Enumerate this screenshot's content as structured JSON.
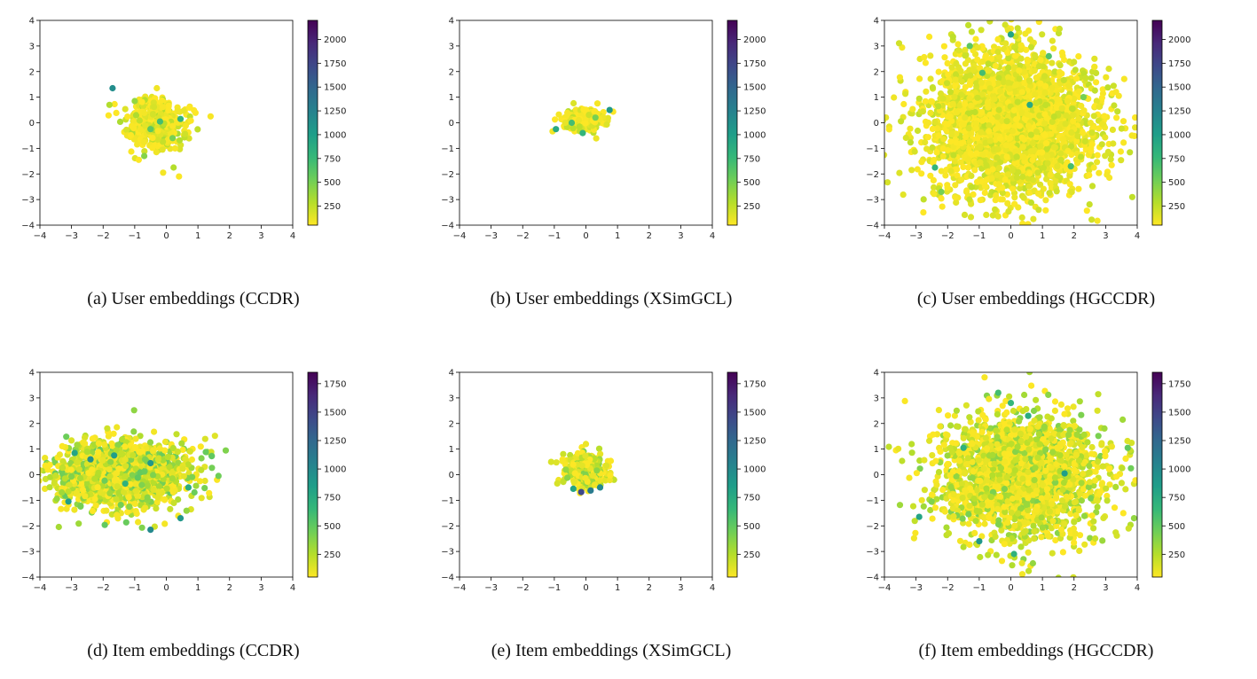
{
  "colormap": {
    "name": "viridis",
    "stops": [
      "#440154",
      "#482878",
      "#3e4989",
      "#31688e",
      "#26828e",
      "#1f9e89",
      "#35b779",
      "#6ece58",
      "#b5de2b",
      "#fde725"
    ],
    "note": "low values yellow, high values purple"
  },
  "chart_data": [
    {
      "type": "scatter",
      "panel": "a",
      "caption": "(a)  User embeddings (CCDR)",
      "xlim": [
        -4,
        4
      ],
      "ylim": [
        -4,
        4
      ],
      "xticks": [
        -4,
        -3,
        -2,
        -1,
        0,
        1,
        2,
        3,
        4
      ],
      "yticks": [
        -4,
        -3,
        -2,
        -1,
        0,
        1,
        2,
        3,
        4
      ],
      "colorbar": {
        "range": [
          50,
          2200
        ],
        "ticks": [
          250,
          500,
          750,
          1000,
          1250,
          1500,
          1750,
          2000
        ]
      },
      "cloud": {
        "cx": -0.35,
        "cy": 0.0,
        "sx": 0.45,
        "sy": 0.5,
        "n": 420,
        "base_values": [
          50,
          330
        ]
      },
      "points": [
        {
          "x": -1.7,
          "y": 1.35,
          "v": 1150
        },
        {
          "x": 0.45,
          "y": 0.15,
          "v": 800
        },
        {
          "x": -0.7,
          "y": -1.3,
          "v": 450
        },
        {
          "x": -1.8,
          "y": 0.7,
          "v": 300
        },
        {
          "x": -0.2,
          "y": 0.05,
          "v": 700
        },
        {
          "x": -0.5,
          "y": -0.25,
          "v": 600
        },
        {
          "x": -1.0,
          "y": 0.85,
          "v": 400
        },
        {
          "x": 0.2,
          "y": -0.6,
          "v": 500
        },
        {
          "x": 0.4,
          "y": -2.1,
          "v": 60
        },
        {
          "x": -0.1,
          "y": -1.95,
          "v": 80
        },
        {
          "x": 1.4,
          "y": 0.25,
          "v": 70
        },
        {
          "x": -0.3,
          "y": 1.35,
          "v": 90
        }
      ]
    },
    {
      "type": "scatter",
      "panel": "b",
      "caption": "(b)  User embeddings (XSimGCL)",
      "xlim": [
        -4,
        4
      ],
      "ylim": [
        -4,
        4
      ],
      "xticks": [
        -4,
        -3,
        -2,
        -1,
        0,
        1,
        2,
        3,
        4
      ],
      "yticks": [
        -4,
        -3,
        -2,
        -1,
        0,
        1,
        2,
        3,
        4
      ],
      "colorbar": {
        "range": [
          50,
          2200
        ],
        "ticks": [
          250,
          500,
          750,
          1000,
          1250,
          1500,
          1750,
          2000
        ]
      },
      "cloud": {
        "cx": -0.05,
        "cy": 0.1,
        "sx": 0.3,
        "sy": 0.2,
        "n": 320,
        "base_values": [
          50,
          280
        ]
      },
      "points": [
        {
          "x": -0.95,
          "y": -0.25,
          "v": 900
        },
        {
          "x": 0.75,
          "y": 0.5,
          "v": 1050
        },
        {
          "x": -0.45,
          "y": 0.0,
          "v": 700
        },
        {
          "x": -0.1,
          "y": -0.4,
          "v": 800
        },
        {
          "x": 0.3,
          "y": 0.2,
          "v": 500
        }
      ]
    },
    {
      "type": "scatter",
      "panel": "c",
      "caption": "(c)  User embeddings (HGCCDR)",
      "xlim": [
        -4,
        4
      ],
      "ylim": [
        -4,
        4
      ],
      "xticks": [
        -4,
        -3,
        -2,
        -1,
        0,
        1,
        2,
        3,
        4
      ],
      "yticks": [
        -4,
        -3,
        -2,
        -1,
        0,
        1,
        2,
        3,
        4
      ],
      "colorbar": {
        "range": [
          50,
          2200
        ],
        "ticks": [
          250,
          500,
          750,
          1000,
          1250,
          1500,
          1750,
          2000
        ]
      },
      "cloud": {
        "cx": 0.0,
        "cy": 0.0,
        "sx": 1.35,
        "sy": 1.45,
        "n": 2600,
        "base_values": [
          50,
          260
        ]
      },
      "points": [
        {
          "x": 0.0,
          "y": 3.45,
          "v": 950
        },
        {
          "x": -0.9,
          "y": 1.95,
          "v": 700
        },
        {
          "x": -2.4,
          "y": -1.75,
          "v": 800
        },
        {
          "x": -1.3,
          "y": 3.0,
          "v": 600
        },
        {
          "x": 1.2,
          "y": 2.6,
          "v": 650
        },
        {
          "x": 1.9,
          "y": -1.7,
          "v": 700
        },
        {
          "x": -2.2,
          "y": -2.7,
          "v": 500
        },
        {
          "x": 0.6,
          "y": 0.7,
          "v": 900
        },
        {
          "x": 2.3,
          "y": 1.0,
          "v": 500
        }
      ]
    },
    {
      "type": "scatter",
      "panel": "d",
      "caption": "(d)  Item embeddings (CCDR)",
      "xlim": [
        -4,
        4
      ],
      "ylim": [
        -4,
        4
      ],
      "xticks": [
        -4,
        -3,
        -2,
        -1,
        0,
        1,
        2,
        3,
        4
      ],
      "yticks": [
        -4,
        -3,
        -2,
        -1,
        0,
        1,
        2,
        3,
        4
      ],
      "colorbar": {
        "range": [
          50,
          1850
        ],
        "ticks": [
          250,
          500,
          750,
          1000,
          1250,
          1500,
          1750
        ]
      },
      "cloud": {
        "cx": -1.35,
        "cy": 0.0,
        "sx": 1.05,
        "sy": 0.65,
        "n": 1500,
        "base_values": [
          50,
          500
        ]
      },
      "points": [
        {
          "x": -0.5,
          "y": -2.15,
          "v": 1000
        },
        {
          "x": 0.45,
          "y": -1.7,
          "v": 900
        },
        {
          "x": -0.5,
          "y": 0.45,
          "v": 900
        },
        {
          "x": -2.4,
          "y": 0.6,
          "v": 950
        },
        {
          "x": -3.1,
          "y": -1.05,
          "v": 850
        },
        {
          "x": 1.65,
          "y": -0.05,
          "v": 450
        },
        {
          "x": -1.65,
          "y": 0.75,
          "v": 850
        },
        {
          "x": -2.9,
          "y": 0.85,
          "v": 800
        },
        {
          "x": -1.3,
          "y": -0.35,
          "v": 700
        },
        {
          "x": 0.7,
          "y": -0.5,
          "v": 750
        }
      ]
    },
    {
      "type": "scatter",
      "panel": "e",
      "caption": "(e)  Item embeddings (XSimGCL)",
      "xlim": [
        -4,
        4
      ],
      "ylim": [
        -4,
        4
      ],
      "xticks": [
        -4,
        -3,
        -2,
        -1,
        0,
        1,
        2,
        3,
        4
      ],
      "yticks": [
        -4,
        -3,
        -2,
        -1,
        0,
        1,
        2,
        3,
        4
      ],
      "colorbar": {
        "range": [
          50,
          1850
        ],
        "ticks": [
          250,
          500,
          750,
          1000,
          1250,
          1500,
          1750
        ]
      },
      "cloud": {
        "cx": 0.0,
        "cy": 0.15,
        "sx": 0.32,
        "sy": 0.28,
        "n": 450,
        "base_values": [
          50,
          420
        ]
      },
      "points": [
        {
          "x": -0.15,
          "y": -0.68,
          "v": 1450
        },
        {
          "x": 0.15,
          "y": -0.62,
          "v": 1100
        },
        {
          "x": -0.4,
          "y": -0.55,
          "v": 800
        },
        {
          "x": 0.45,
          "y": -0.5,
          "v": 1000
        },
        {
          "x": -1.1,
          "y": 0.5,
          "v": 150
        },
        {
          "x": 0.0,
          "y": 1.2,
          "v": 100
        }
      ]
    },
    {
      "type": "scatter",
      "panel": "f",
      "caption": "(f)  Item embeddings (HGCCDR)",
      "xlim": [
        -4,
        4
      ],
      "ylim": [
        -4,
        4
      ],
      "xticks": [
        -4,
        -3,
        -2,
        -1,
        0,
        1,
        2,
        3,
        4
      ],
      "yticks": [
        -4,
        -3,
        -2,
        -1,
        0,
        1,
        2,
        3,
        4
      ],
      "colorbar": {
        "range": [
          50,
          1850
        ],
        "ticks": [
          250,
          500,
          750,
          1000,
          1250,
          1500,
          1750
        ]
      },
      "cloud": {
        "cx": 0.3,
        "cy": -0.05,
        "sx": 1.3,
        "sy": 1.2,
        "n": 2200,
        "base_values": [
          50,
          420
        ]
      },
      "points": [
        {
          "x": -0.4,
          "y": 3.2,
          "v": 600
        },
        {
          "x": 3.7,
          "y": 1.05,
          "v": 500
        },
        {
          "x": 3.8,
          "y": 0.25,
          "v": 450
        },
        {
          "x": -1.0,
          "y": -2.6,
          "v": 900
        },
        {
          "x": 0.1,
          "y": -3.1,
          "v": 700
        },
        {
          "x": -2.9,
          "y": -1.65,
          "v": 800
        },
        {
          "x": 1.7,
          "y": 0.05,
          "v": 850
        },
        {
          "x": 0.55,
          "y": 2.3,
          "v": 750
        },
        {
          "x": -1.5,
          "y": 1.05,
          "v": 700
        },
        {
          "x": 0.0,
          "y": 2.8,
          "v": 650
        },
        {
          "x": 3.9,
          "y": -1.7,
          "v": 350
        }
      ]
    }
  ]
}
